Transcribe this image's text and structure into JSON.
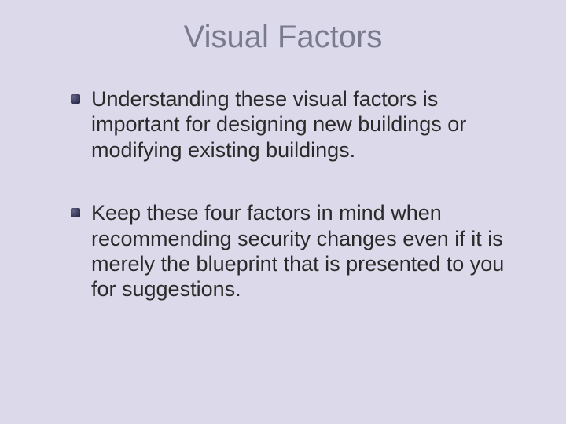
{
  "slide": {
    "title": "Visual Factors",
    "bullets": [
      "Understanding these visual factors is important for designing new buildings or modifying existing buildings.",
      "Keep these four factors in mind when recommending security changes even if it is merely the blueprint that is presented to you for suggestions."
    ]
  },
  "colors": {
    "background": "#dcdaea",
    "title_color": "#7a7a8f",
    "body_text": "#2a2a2a",
    "bullet_color": "#1a1a3a"
  },
  "typography": {
    "title_fontsize": 40,
    "body_fontsize": 27,
    "font_family": "Arial"
  }
}
